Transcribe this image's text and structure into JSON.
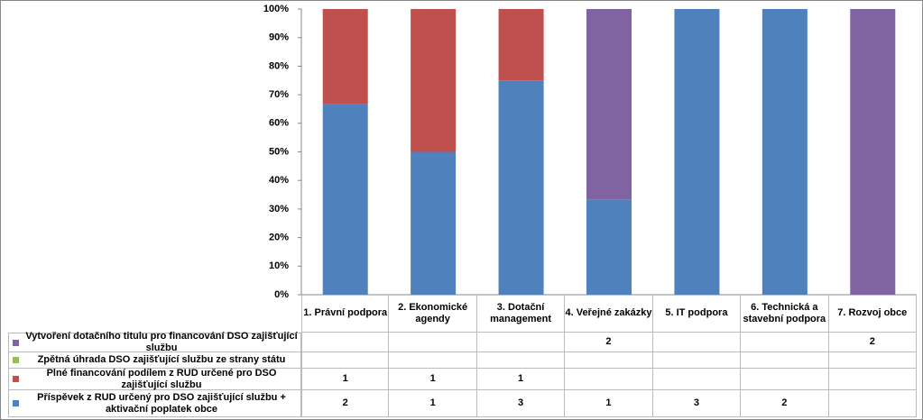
{
  "chart_data": {
    "type": "stacked_bar_100",
    "categories": [
      "1.  Právní podpora",
      "2.  Ekonomické agendy",
      "3.  Dotační management",
      "4.  Veřejné zakázky",
      "5.  IT podpora",
      "6.  Technická a stavební podpora",
      "7.  Rozvoj obce"
    ],
    "series": [
      {
        "name": "Příspěvek z RUD určený pro DSO zajišťující službu + aktivační poplatek obce",
        "color": "#4f81bd",
        "values": [
          2,
          1,
          3,
          1,
          3,
          2,
          null
        ]
      },
      {
        "name": "Plné financování podílem z RUD určené pro DSO zajišťující službu",
        "color": "#c0504d",
        "values": [
          1,
          1,
          1,
          null,
          null,
          null,
          null
        ]
      },
      {
        "name": "Zpětná úhrada DSO zajišťující službu ze strany státu",
        "color": "#9bbb59",
        "values": [
          null,
          null,
          null,
          null,
          null,
          null,
          null
        ]
      },
      {
        "name": "Vytvoření dotačního titulu pro financování DSO zajišťující službu",
        "color": "#8064a2",
        "values": [
          null,
          null,
          null,
          2,
          null,
          null,
          2
        ]
      }
    ],
    "ylim": [
      0,
      100
    ],
    "yticks": [
      {
        "value": 0,
        "label": "0%"
      },
      {
        "value": 10,
        "label": "10%"
      },
      {
        "value": 20,
        "label": "20%"
      },
      {
        "value": 30,
        "label": "30%"
      },
      {
        "value": 40,
        "label": "40%"
      },
      {
        "value": 50,
        "label": "50%"
      },
      {
        "value": 60,
        "label": "60%"
      },
      {
        "value": 70,
        "label": "70%"
      },
      {
        "value": 80,
        "label": "80%"
      },
      {
        "value": 90,
        "label": "90%"
      },
      {
        "value": 100,
        "label": "100%"
      }
    ]
  }
}
